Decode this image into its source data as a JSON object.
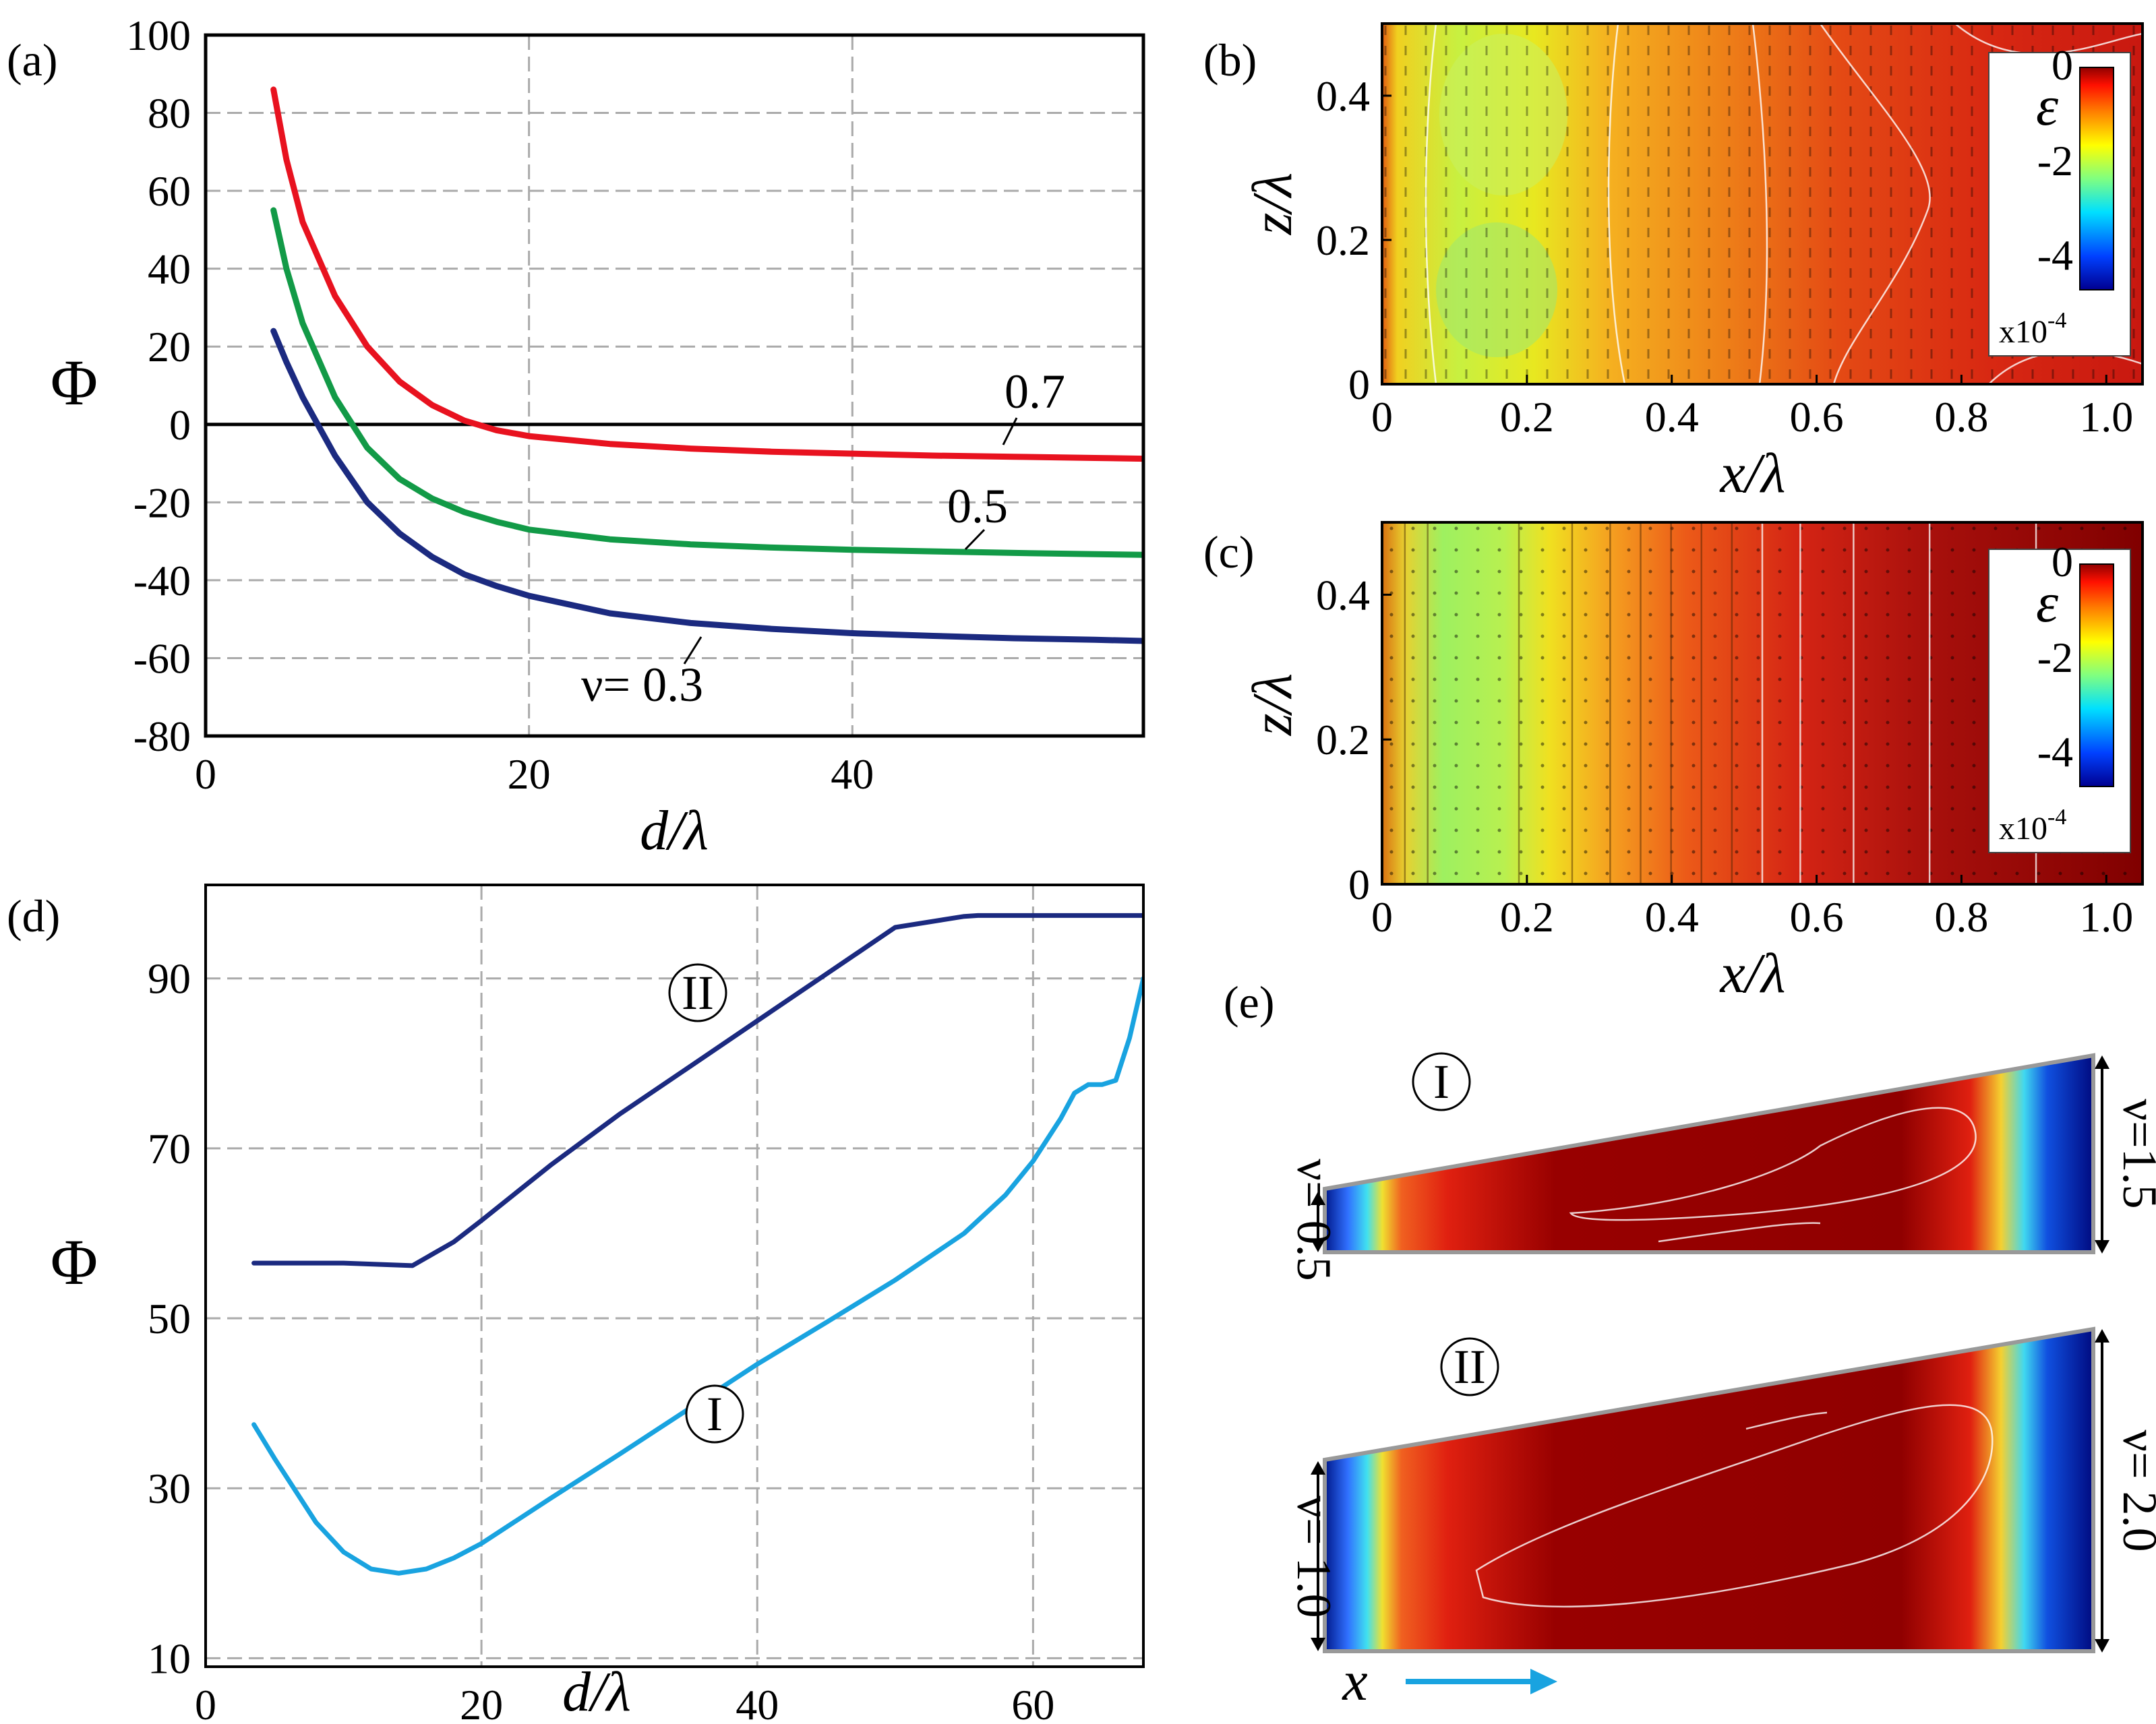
{
  "chart_data": [
    {
      "panel": "a",
      "panel_label": "(a)",
      "type": "line",
      "xlabel": "d/λ",
      "ylabel": "Φ",
      "xlim": [
        0,
        58
      ],
      "ylim": [
        -80,
        100
      ],
      "xticks": [
        0,
        20,
        40
      ],
      "yticks": [
        100,
        80,
        60,
        40,
        20,
        0,
        -20,
        -40,
        -60,
        -80
      ],
      "grid": true,
      "series": [
        {
          "name": "ν = 0.7",
          "label": "0.7",
          "color": "#e8121f",
          "x": [
            4.2,
            5,
            6,
            8,
            10,
            12,
            14,
            16,
            18,
            20,
            25,
            30,
            35,
            40,
            45,
            50,
            55,
            58
          ],
          "y": [
            86,
            68,
            52,
            33,
            20,
            11,
            5,
            1,
            -1.5,
            -3,
            -5,
            -6.2,
            -7,
            -7.5,
            -8,
            -8.3,
            -8.6,
            -8.8
          ]
        },
        {
          "name": "ν = 0.5",
          "label": "0.5",
          "color": "#129a47",
          "x": [
            4.2,
            5,
            6,
            8,
            10,
            12,
            14,
            16,
            18,
            20,
            25,
            30,
            35,
            40,
            45,
            50,
            55,
            58
          ],
          "y": [
            55,
            40,
            26,
            7,
            -6,
            -14,
            -19,
            -22.5,
            -25,
            -27,
            -29.5,
            -30.8,
            -31.6,
            -32.2,
            -32.6,
            -33,
            -33.3,
            -33.5
          ]
        },
        {
          "name": "ν = 0.3",
          "label": "ν= 0.3",
          "color": "#1b2a80",
          "x": [
            4.2,
            5,
            6,
            8,
            10,
            12,
            14,
            16,
            18,
            20,
            25,
            30,
            35,
            40,
            45,
            50,
            55,
            58
          ],
          "y": [
            24,
            16,
            7,
            -8,
            -20,
            -28,
            -34,
            -38.5,
            -41.5,
            -44,
            -48.5,
            -51,
            -52.5,
            -53.6,
            -54.3,
            -54.9,
            -55.3,
            -55.6
          ]
        }
      ]
    },
    {
      "panel": "b",
      "panel_label": "(b)",
      "type": "heatmap",
      "xlabel": "x/λ",
      "ylabel": "z/λ",
      "xlim": [
        0,
        1.05
      ],
      "ylim": [
        0,
        0.5
      ],
      "xticks": [
        "0",
        "0.2",
        "0.4",
        "0.6",
        "0.8",
        "1.0"
      ],
      "yticks": [
        "0",
        "0.2",
        "0.4"
      ],
      "colorbar": {
        "label": "ε",
        "ticks": [
          "0",
          "-2",
          "-4"
        ],
        "scale": "x10",
        "exponent": "-4",
        "range": [
          -5,
          0
        ]
      }
    },
    {
      "panel": "c",
      "panel_label": "(c)",
      "type": "heatmap",
      "xlabel": "x/λ",
      "ylabel": "z/λ",
      "xlim": [
        0,
        1.05
      ],
      "ylim": [
        0,
        0.5
      ],
      "xticks": [
        "0",
        "0.2",
        "0.4",
        "0.6",
        "0.8",
        "1.0"
      ],
      "yticks": [
        "0",
        "0.2",
        "0.4"
      ],
      "colorbar": {
        "label": "ε",
        "ticks": [
          "0",
          "-2",
          "-4"
        ],
        "scale": "x10",
        "exponent": "-4",
        "range": [
          -5,
          0
        ]
      }
    },
    {
      "panel": "d",
      "panel_label": "(d)",
      "type": "line",
      "xlabel": "d/λ",
      "ylabel": "Φ",
      "xlim": [
        0,
        68
      ],
      "ylim": [
        9,
        101
      ],
      "xticks": [
        0,
        20,
        40,
        60
      ],
      "yticks": [
        90,
        70,
        50,
        30,
        10
      ],
      "grid": true,
      "series": [
        {
          "name": "II",
          "label": "II",
          "color": "#1b2a80",
          "x": [
            3.5,
            5,
            10,
            15,
            18,
            20,
            25,
            30,
            35,
            40,
            45,
            50,
            55,
            56,
            60,
            65,
            68
          ],
          "y": [
            56.5,
            56.5,
            56.5,
            56.2,
            59,
            61.5,
            68,
            74,
            79.5,
            85,
            90.5,
            96,
            97.3,
            97.4,
            97.4,
            97.4,
            97.4
          ]
        },
        {
          "name": "I",
          "label": "I",
          "color": "#19a3e0",
          "x": [
            3.5,
            5,
            8,
            10,
            12,
            14,
            16,
            18,
            20,
            25,
            30,
            35,
            40,
            45,
            50,
            55,
            58,
            60,
            62,
            63,
            64,
            65,
            66,
            67,
            68
          ],
          "y": [
            37.5,
            33.5,
            26,
            22.5,
            20.5,
            20,
            20.5,
            21.8,
            23.5,
            28.8,
            34,
            39.3,
            44.6,
            49.5,
            54.5,
            60,
            64.5,
            68.5,
            73.5,
            76.5,
            77.5,
            77.5,
            78,
            83,
            90
          ]
        }
      ]
    },
    {
      "panel": "e",
      "panel_label": "(e)",
      "type": "heatmap",
      "schemes": [
        {
          "roman": "I",
          "nu_left": "ν= 0.5",
          "nu_right": "ν=1.5"
        },
        {
          "roman": "II",
          "nu_left": "ν= 1.0",
          "nu_right": "ν= 2.0"
        }
      ],
      "x_axis_label": "x",
      "arrow_color": "#19a3e0"
    }
  ]
}
